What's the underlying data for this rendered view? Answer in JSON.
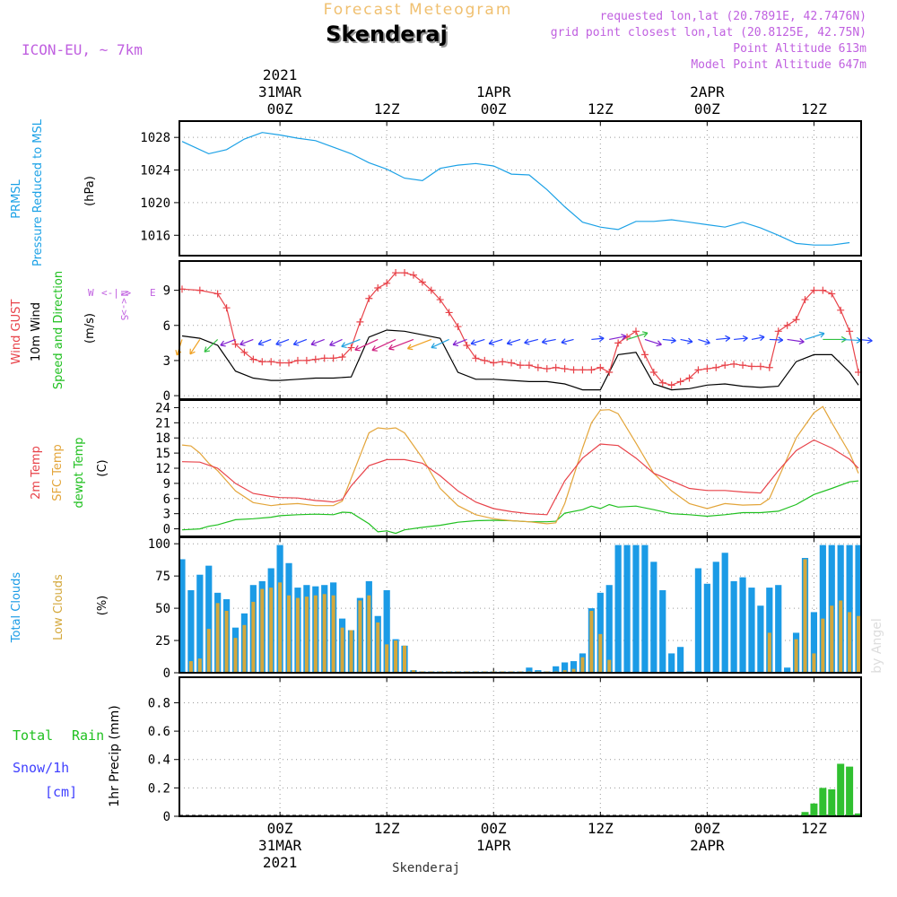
{
  "header": {
    "product": "Forecast Meteogram",
    "location": "Skenderaj",
    "model": "ICON-EU, ~ 7km",
    "requested": "requested lon,lat (20.7891E, 42.7476N)",
    "gridpoint": "grid point closest lon,lat (20.8125E, 42.75N)",
    "point_alt": "Point Altitude 613m",
    "model_alt": "Model Point Altitude 647m",
    "credit": "by Angel",
    "footer": "Skenderaj"
  },
  "time_axis": {
    "top_ticks": [
      {
        "h": 0,
        "lines": [
          "2021",
          "31MAR",
          "00Z"
        ]
      },
      {
        "h": 12,
        "lines": [
          "12Z"
        ]
      },
      {
        "h": 24,
        "lines": [
          "1APR",
          "00Z"
        ]
      },
      {
        "h": 36,
        "lines": [
          "12Z"
        ]
      },
      {
        "h": 48,
        "lines": [
          "2APR",
          "00Z"
        ]
      },
      {
        "h": 60,
        "lines": [
          "12Z"
        ]
      }
    ],
    "bottom_ticks": [
      {
        "h": 0,
        "lines": [
          "00Z",
          "31MAR",
          "2021"
        ]
      },
      {
        "h": 12,
        "lines": [
          "12Z"
        ]
      },
      {
        "h": 24,
        "lines": [
          "00Z",
          "1APR"
        ]
      },
      {
        "h": 36,
        "lines": [
          "12Z"
        ]
      },
      {
        "h": 48,
        "lines": [
          "00Z",
          "2APR"
        ]
      },
      {
        "h": 60,
        "lines": [
          "12Z"
        ]
      }
    ],
    "range_hours": [
      -11.3,
      65.3
    ]
  },
  "colors": {
    "pressure": "#1ba1e6",
    "gust": "#e8434a",
    "wind": "#000000",
    "temp": "#e8434a",
    "sfc": "#e3a53a",
    "dewpt": "#20c020",
    "total_cloud": "#1b9be6",
    "low_cloud": "#d4a83c",
    "rain": "#30c030",
    "snow": "#4040ff",
    "label_purple": "#c060e0",
    "header_orange": "#f0c070"
  },
  "chart_data": [
    {
      "type": "line",
      "title": "PRMSL Pressure Reduced to MSL",
      "ylabel": "(hPa)",
      "ylim": [
        1013.5,
        1030
      ],
      "yticks": [
        1016,
        1020,
        1024,
        1028
      ],
      "series": [
        {
          "name": "PRMSL Pressure Reduced to MSL",
          "x": [
            -11,
            -8,
            -6,
            -4,
            -2,
            0,
            2,
            4,
            6,
            8,
            10,
            12,
            14,
            16,
            18,
            20,
            22,
            24,
            26,
            28,
            30,
            32,
            34,
            36,
            38,
            40,
            42,
            44,
            46,
            48,
            50,
            52,
            54,
            56,
            58,
            60,
            62,
            64
          ],
          "y": [
            1027.5,
            1026.0,
            1026.5,
            1027.8,
            1028.6,
            1028.3,
            1027.9,
            1027.6,
            1026.8,
            1026.0,
            1024.9,
            1024.1,
            1023.0,
            1022.7,
            1024.2,
            1024.6,
            1024.8,
            1024.5,
            1023.5,
            1023.4,
            1021.6,
            1019.5,
            1017.6,
            1017.0,
            1016.7,
            1017.7,
            1017.7,
            1017.9,
            1017.6,
            1017.3,
            1017.0,
            1017.6,
            1016.9,
            1016.0,
            1015.0,
            1014.8,
            1014.8,
            1015.1
          ]
        }
      ]
    },
    {
      "type": "line",
      "title": "Wind GUST / 10m Wind Speed and Direction",
      "ylabel": "(m/s)",
      "ylim": [
        -0.3,
        11.5
      ],
      "yticks": [
        0,
        3,
        6,
        9
      ],
      "compass": {
        "n": "N",
        "s": "S",
        "e": "E",
        "w": "W"
      },
      "series": [
        {
          "name": "Wind GUST",
          "x": [
            -11,
            -9,
            -7,
            -6,
            -5,
            -4,
            -3,
            -2,
            -1,
            0,
            1,
            2,
            3,
            4,
            5,
            6,
            7,
            8,
            9,
            10,
            11,
            12,
            13,
            14,
            15,
            16,
            17,
            18,
            19,
            20,
            21,
            22,
            23,
            24,
            25,
            26,
            27,
            28,
            29,
            30,
            31,
            32,
            33,
            34,
            35,
            36,
            37,
            38,
            39,
            40,
            41,
            42,
            43,
            44,
            45,
            46,
            47,
            48,
            49,
            50,
            51,
            52,
            53,
            54,
            55,
            56,
            57,
            58,
            59,
            60,
            61,
            62,
            63,
            64,
            65
          ],
          "y": [
            9.1,
            9.0,
            8.7,
            7.5,
            4.4,
            3.7,
            3.1,
            2.9,
            2.9,
            2.8,
            2.8,
            3.0,
            3.0,
            3.1,
            3.2,
            3.2,
            3.3,
            4.1,
            6.3,
            8.3,
            9.2,
            9.6,
            10.5,
            10.5,
            10.3,
            9.7,
            9.0,
            8.2,
            7.1,
            5.9,
            4.3,
            3.2,
            3.0,
            2.8,
            2.9,
            2.8,
            2.6,
            2.6,
            2.4,
            2.3,
            2.4,
            2.3,
            2.2,
            2.2,
            2.2,
            2.4,
            2.0,
            4.5,
            5.0,
            5.5,
            3.5,
            2.0,
            1.1,
            0.9,
            1.2,
            1.5,
            2.2,
            2.3,
            2.4,
            2.6,
            2.7,
            2.6,
            2.5,
            2.5,
            2.4,
            5.5,
            6.0,
            6.5,
            8.2,
            9.0,
            9.0,
            8.7,
            7.3,
            5.5,
            2.0
          ]
        },
        {
          "name": "10m Wind Speed and Direction",
          "x": [
            -11,
            -9,
            -7,
            -5,
            -3,
            -2,
            -1,
            0,
            2,
            4,
            6,
            8,
            10,
            12,
            14,
            16,
            18,
            20,
            22,
            24,
            26,
            28,
            30,
            32,
            34,
            36,
            38,
            40,
            42,
            44,
            46,
            48,
            50,
            52,
            54,
            56,
            58,
            60,
            62,
            64,
            65
          ],
          "y": [
            5.1,
            4.9,
            4.3,
            2.1,
            1.5,
            1.4,
            1.3,
            1.3,
            1.4,
            1.5,
            1.5,
            1.6,
            5.0,
            5.6,
            5.5,
            5.2,
            4.9,
            2.0,
            1.4,
            1.4,
            1.3,
            1.2,
            1.2,
            1.0,
            0.5,
            0.5,
            3.5,
            3.7,
            1.0,
            0.5,
            0.6,
            0.9,
            1.0,
            0.8,
            0.7,
            0.8,
            2.9,
            3.5,
            3.5,
            2.0,
            0.9
          ]
        },
        {
          "name": "10m wind direction (deg from)",
          "x": [
            -11,
            -9,
            -7,
            -5,
            -3,
            -1,
            1,
            3,
            5,
            7,
            9,
            11,
            13,
            15,
            17,
            19,
            21,
            23,
            25,
            27,
            29,
            31,
            33,
            35,
            37,
            39,
            41,
            43,
            45,
            47,
            49,
            51,
            53,
            55,
            57,
            59,
            61,
            63,
            65
          ],
          "y": [
            10,
            20,
            30,
            55,
            55,
            55,
            55,
            55,
            55,
            50,
            55,
            50,
            50,
            55,
            55,
            50,
            55,
            60,
            60,
            60,
            65,
            70,
            65,
            260,
            250,
            240,
            300,
            280,
            290,
            300,
            260,
            260,
            250,
            275,
            285,
            240,
            270,
            275,
            280
          ]
        }
      ]
    },
    {
      "type": "line",
      "title": "2m Temp / SFC Temp / dewpt Temp",
      "ylabel": "(C)",
      "ylim": [
        -1.5,
        25.5
      ],
      "yticks": [
        0,
        3,
        6,
        9,
        12,
        15,
        18,
        21,
        24
      ],
      "series": [
        {
          "name": "2m Temp",
          "x": [
            -11,
            -9,
            -7,
            -5,
            -3,
            -1,
            0,
            2,
            4,
            5,
            6,
            7,
            8,
            10,
            12,
            14,
            16,
            18,
            20,
            22,
            24,
            26,
            28,
            30,
            32,
            34,
            36,
            38,
            40,
            42,
            44,
            46,
            48,
            50,
            52,
            54,
            56,
            58,
            60,
            62,
            64,
            65
          ],
          "y": [
            13.3,
            13.2,
            12.0,
            9.0,
            7.0,
            6.4,
            6.2,
            6.1,
            5.6,
            5.5,
            5.3,
            5.8,
            8.5,
            12.5,
            13.7,
            13.7,
            13.0,
            10.5,
            7.5,
            5.3,
            4.0,
            3.4,
            3.0,
            2.8,
            9.5,
            14.0,
            16.8,
            16.5,
            14.0,
            11.0,
            9.5,
            8.0,
            7.6,
            7.6,
            7.3,
            7.1,
            11.5,
            15.5,
            17.6,
            16.0,
            13.8,
            12.0
          ]
        },
        {
          "name": "SFC Temp",
          "x": [
            -11,
            -10,
            -9,
            -8,
            -7,
            -5,
            -3,
            -1,
            0,
            2,
            4,
            6,
            7,
            8,
            10,
            11,
            12,
            13,
            14,
            16,
            18,
            20,
            22,
            24,
            26,
            28,
            30,
            31,
            32,
            34,
            35,
            36,
            37,
            38,
            40,
            42,
            44,
            46,
            48,
            50,
            52,
            54,
            55,
            56,
            58,
            60,
            61,
            62,
            64,
            65
          ],
          "y": [
            16.6,
            16.4,
            15.0,
            13.0,
            11.5,
            7.5,
            5.2,
            4.6,
            4.8,
            5.0,
            4.6,
            4.6,
            5.5,
            10.0,
            19.0,
            20.0,
            19.8,
            20.0,
            19.0,
            14.0,
            8.0,
            4.6,
            2.8,
            2.0,
            1.6,
            1.4,
            1.0,
            1.2,
            5.0,
            16.0,
            21.0,
            23.5,
            23.6,
            22.8,
            17.0,
            11.0,
            7.5,
            5.0,
            4.0,
            5.0,
            4.7,
            4.8,
            6.0,
            10.0,
            18.0,
            23.0,
            24.2,
            21.0,
            15.0,
            11.0
          ]
        },
        {
          "name": "dewpt Temp",
          "x": [
            -11,
            -9,
            -8,
            -7,
            -5,
            -3,
            -1,
            0,
            2,
            4,
            6,
            7,
            8,
            10,
            11,
            12,
            13,
            14,
            16,
            18,
            20,
            22,
            24,
            26,
            28,
            30,
            31,
            32,
            34,
            35,
            36,
            37,
            38,
            40,
            42,
            44,
            46,
            48,
            50,
            52,
            54,
            56,
            58,
            60,
            62,
            64,
            65
          ],
          "y": [
            -0.2,
            0.0,
            0.5,
            0.8,
            1.8,
            2.0,
            2.3,
            2.6,
            2.8,
            2.9,
            2.8,
            3.3,
            3.2,
            1.0,
            -0.6,
            -0.4,
            -0.9,
            -0.2,
            0.3,
            0.7,
            1.3,
            1.6,
            1.7,
            1.6,
            1.4,
            1.4,
            1.5,
            3.1,
            3.8,
            4.5,
            4.0,
            4.8,
            4.3,
            4.5,
            3.8,
            3.0,
            2.8,
            2.5,
            2.8,
            3.2,
            3.2,
            3.5,
            4.8,
            6.8,
            8.0,
            9.3,
            9.5
          ]
        }
      ]
    },
    {
      "type": "bar",
      "title": "Total Clouds / Low Clouds",
      "ylabel": "(%)",
      "ylim": [
        0,
        105
      ],
      "yticks": [
        0,
        25,
        50,
        75,
        100
      ],
      "x": [
        -11,
        -10,
        -9,
        -8,
        -7,
        -6,
        -5,
        -4,
        -3,
        -2,
        -1,
        0,
        1,
        2,
        3,
        4,
        5,
        6,
        7,
        8,
        9,
        10,
        11,
        12,
        13,
        14,
        15,
        16,
        17,
        18,
        19,
        20,
        21,
        22,
        23,
        24,
        25,
        26,
        27,
        28,
        29,
        30,
        31,
        32,
        33,
        34,
        35,
        36,
        37,
        38,
        39,
        40,
        41,
        42,
        43,
        44,
        45,
        46,
        47,
        48,
        49,
        50,
        51,
        52,
        53,
        54,
        55,
        56,
        57,
        58,
        59,
        60,
        61,
        62,
        63,
        64,
        65
      ],
      "series": [
        {
          "name": "Total Clouds",
          "values": [
            88,
            64,
            76,
            83,
            62,
            57,
            35,
            46,
            68,
            71,
            81,
            99,
            85,
            66,
            68,
            67,
            68,
            70,
            42,
            33,
            58,
            71,
            44,
            64,
            26,
            21,
            2,
            1,
            1,
            1,
            1,
            1,
            1,
            1,
            1,
            1,
            1,
            1,
            1,
            4,
            2,
            1,
            5,
            8,
            9,
            15,
            50,
            62,
            68,
            99,
            99,
            99,
            99,
            86,
            64,
            15,
            20,
            1,
            81,
            69,
            86,
            93,
            71,
            74,
            66,
            52,
            66,
            68,
            4,
            31,
            89,
            47,
            99,
            99,
            99,
            99,
            99
          ]
        },
        {
          "name": "Low Clouds",
          "values": [
            0,
            9,
            11,
            34,
            54,
            48,
            27,
            37,
            55,
            65,
            66,
            70,
            60,
            58,
            59,
            60,
            61,
            60,
            35,
            33,
            56,
            60,
            39,
            22,
            25,
            21,
            2,
            1,
            1,
            1,
            1,
            1,
            1,
            1,
            1,
            1,
            1,
            1,
            1,
            1,
            1,
            1,
            1,
            2,
            3,
            12,
            48,
            30,
            10,
            0,
            0,
            0,
            0,
            0,
            0,
            0,
            0,
            0,
            0,
            0,
            0,
            0,
            0,
            0,
            0,
            0,
            31,
            0,
            0,
            26,
            88,
            15,
            42,
            52,
            56,
            47,
            44
          ]
        }
      ]
    },
    {
      "type": "bar",
      "title": "1hr Precip (mm)",
      "ylabel": "1hr Precip (mm)",
      "ylim": [
        0,
        0.98
      ],
      "yticks": [
        0,
        0.2,
        0.4,
        0.6,
        0.8
      ],
      "legend": [
        "Total",
        "Rain",
        "Snow/1h",
        "[cm]"
      ],
      "x": [
        59,
        60,
        61,
        62,
        63,
        64,
        65
      ],
      "series": [
        {
          "name": "Rain",
          "values": [
            0.03,
            0.09,
            0.2,
            0.19,
            0.37,
            0.35,
            0.02
          ]
        }
      ]
    }
  ]
}
